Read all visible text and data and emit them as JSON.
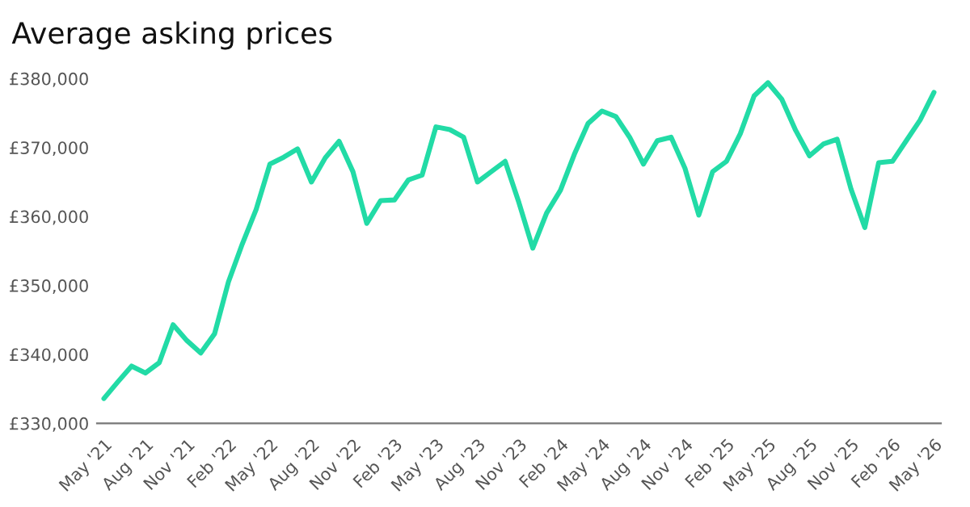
{
  "chart_data": {
    "type": "line",
    "title": "Average asking prices",
    "categories": [
      "May '21",
      null,
      null,
      "Aug '21",
      null,
      null,
      "Nov '21",
      null,
      null,
      "Feb '22",
      null,
      null,
      "May '22",
      null,
      null,
      "Aug '22",
      null,
      null,
      "Nov '22",
      null,
      null,
      "Feb '23",
      null,
      null,
      "May '23",
      null,
      null,
      "Aug '23",
      null,
      null,
      "Nov '23",
      null,
      null,
      "Feb '24",
      null,
      null,
      "May '24",
      null,
      null,
      "Aug '24",
      null,
      null,
      "Nov '24",
      null,
      null,
      "Feb '25",
      null,
      null,
      "May '25",
      null,
      null,
      "Aug '25",
      null,
      null,
      "Nov '25",
      null,
      null,
      "Feb '26",
      null,
      null,
      "May '26"
    ],
    "series": [
      {
        "color": "#22dba6",
        "values": [
          333600,
          336000,
          338300,
          337300,
          338800,
          344300,
          342000,
          340200,
          343000,
          350500,
          356000,
          361000,
          367600,
          368600,
          369800,
          365000,
          368500,
          370900,
          366500,
          359000,
          362300,
          362400,
          365300,
          366000,
          373000,
          372600,
          371500,
          365000,
          366500,
          368000,
          362000,
          355400,
          360500,
          363800,
          369000,
          373500,
          375300,
          374500,
          371500,
          367600,
          371000,
          371500,
          367000,
          360200,
          366500,
          368000,
          372000,
          377500,
          379400,
          377000,
          372500,
          368800,
          370500,
          371200,
          364000,
          358400,
          367800,
          368000,
          371000,
          374000,
          378000
        ]
      }
    ],
    "ylim": [
      330000,
      380000
    ],
    "yticks": [
      {
        "value": 330000,
        "label": "£330,000"
      },
      {
        "value": 340000,
        "label": "£340,000"
      },
      {
        "value": 350000,
        "label": "£350,000"
      },
      {
        "value": 360000,
        "label": "£360,000"
      },
      {
        "value": 370000,
        "label": "£370,000"
      },
      {
        "value": 380000,
        "label": "£380,000"
      }
    ],
    "line_style": "solid"
  }
}
